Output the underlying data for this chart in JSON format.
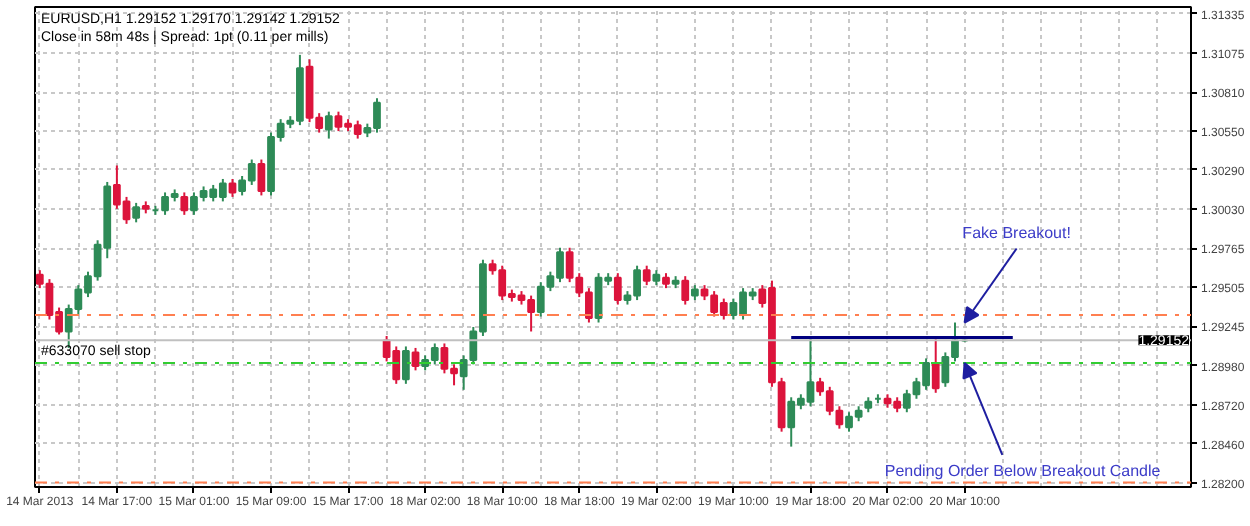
{
  "chart_data": {
    "type": "candlestick",
    "title": "EURUSD,H1  1.29152 1.29170 1.29142 1.29152",
    "subtitle": "Close in 58m 48s | Spread: 1pt (0.11 per mills)",
    "ylim": [
      1.2817,
      1.3138
    ],
    "categories": [
      "14 Mar 2013",
      null,
      null,
      null,
      null,
      null,
      null,
      null,
      "14 Mar 17:00",
      null,
      null,
      null,
      null,
      null,
      null,
      null,
      "15 Mar 01:00",
      null,
      null,
      null,
      null,
      null,
      null,
      null,
      "15 Mar 09:00",
      null,
      null,
      null,
      null,
      null,
      null,
      null,
      "15 Mar 17:00",
      null,
      null,
      null,
      null,
      null,
      null,
      null,
      "18 Mar 02:00",
      null,
      null,
      null,
      null,
      null,
      null,
      null,
      "18 Mar 10:00",
      null,
      null,
      null,
      null,
      null,
      null,
      null,
      "18 Mar 18:00",
      null,
      null,
      null,
      null,
      null,
      null,
      null,
      "19 Mar 02:00",
      null,
      null,
      null,
      null,
      null,
      null,
      null,
      "19 Mar 10:00",
      null,
      null,
      null,
      null,
      null,
      null,
      null,
      "19 Mar 18:00",
      null,
      null,
      null,
      null,
      null,
      null,
      null,
      "20 Mar 02:00",
      null,
      null,
      null,
      null,
      null,
      null,
      null,
      "20 Mar 10:00",
      null,
      null,
      null,
      null,
      null,
      null,
      null,
      null,
      null,
      null,
      null,
      null,
      null,
      null,
      null,
      null,
      null,
      null,
      null,
      null,
      null,
      null,
      null
    ],
    "yticks": [
      {
        "value": 1.31335,
        "label": "1.31335"
      },
      {
        "value": 1.31075,
        "label": "1.31075"
      },
      {
        "value": 1.3081,
        "label": "1.30810"
      },
      {
        "value": 1.3055,
        "label": "1.30550"
      },
      {
        "value": 1.3029,
        "label": "1.30290"
      },
      {
        "value": 1.3003,
        "label": "1.30030"
      },
      {
        "value": 1.29765,
        "label": "1.29765"
      },
      {
        "value": 1.29505,
        "label": "1.29505"
      },
      {
        "value": 1.29245,
        "label": "1.29245"
      },
      {
        "value": 1.2898,
        "label": "1.28980"
      },
      {
        "value": 1.2872,
        "label": "1.28720"
      },
      {
        "value": 1.2846,
        "label": "1.28460"
      },
      {
        "value": 1.282,
        "label": "1.28200"
      }
    ],
    "grid": true,
    "series": [
      {
        "ohlc": [
          [
            1.2959,
            1.2962,
            1.295,
            1.2953
          ],
          [
            1.2953,
            1.2956,
            1.2929,
            1.2932
          ],
          [
            1.2934,
            1.2937,
            1.2919,
            1.2921
          ],
          [
            1.2921,
            1.2939,
            1.291,
            1.2936
          ],
          [
            1.2936,
            1.2952,
            1.2932,
            1.2949
          ],
          [
            1.2947,
            1.2961,
            1.2944,
            1.2958
          ],
          [
            1.2958,
            1.2982,
            1.2955,
            1.2979
          ],
          [
            1.2977,
            1.3021,
            1.297,
            1.3018
          ],
          [
            1.3019,
            1.3032,
            1.3003,
            1.3006
          ],
          [
            1.3008,
            1.3011,
            1.2993,
            1.2996
          ],
          [
            1.2997,
            1.3007,
            1.2994,
            1.3004
          ],
          [
            1.3005,
            1.3008,
            1.3,
            1.3003
          ],
          [
            1.3002,
            1.3005,
            1.2999,
            1.3002
          ],
          [
            1.3002,
            1.3014,
            1.2999,
            1.3011
          ],
          [
            1.3011,
            1.3016,
            1.3008,
            1.3013
          ],
          [
            1.3011,
            1.3014,
            1.2999,
            1.3002
          ],
          [
            1.3002,
            1.3014,
            1.2999,
            1.3011
          ],
          [
            1.3011,
            1.3018,
            1.3008,
            1.3015
          ],
          [
            1.3011,
            1.3019,
            1.3008,
            1.3016
          ],
          [
            1.3011,
            1.3023,
            1.3008,
            1.302
          ],
          [
            1.302,
            1.3023,
            1.3011,
            1.3014
          ],
          [
            1.3015,
            1.3025,
            1.3012,
            1.3022
          ],
          [
            1.3022,
            1.3036,
            1.3019,
            1.3033
          ],
          [
            1.3033,
            1.3036,
            1.3012,
            1.3015
          ],
          [
            1.3015,
            1.3054,
            1.3012,
            1.3051
          ],
          [
            1.3051,
            1.3063,
            1.3048,
            1.306
          ],
          [
            1.306,
            1.3065,
            1.3057,
            1.3062
          ],
          [
            1.3062,
            1.3106,
            1.3059,
            1.3097
          ],
          [
            1.3098,
            1.3103,
            1.3061,
            1.3064
          ],
          [
            1.3064,
            1.3067,
            1.3054,
            1.3057
          ],
          [
            1.3056,
            1.3068,
            1.305,
            1.3065
          ],
          [
            1.3065,
            1.3068,
            1.3055,
            1.3058
          ],
          [
            1.306,
            1.3063,
            1.3055,
            1.3058
          ],
          [
            1.3059,
            1.3062,
            1.305,
            1.3053
          ],
          [
            1.3054,
            1.306,
            1.3051,
            1.3057
          ],
          [
            1.3057,
            1.3077,
            1.3054,
            1.3074
          ],
          [
            1.2915,
            1.2918,
            1.2901,
            1.2904
          ],
          [
            1.2908,
            1.2911,
            1.2886,
            1.2889
          ],
          [
            1.2889,
            1.2911,
            1.2886,
            1.2908
          ],
          [
            1.2907,
            1.291,
            1.2895,
            1.2898
          ],
          [
            1.2898,
            1.2905,
            1.2895,
            1.2902
          ],
          [
            1.2902,
            1.2913,
            1.2899,
            1.291
          ],
          [
            1.291,
            1.2913,
            1.2893,
            1.2896
          ],
          [
            1.2896,
            1.2899,
            1.2885,
            1.2893
          ],
          [
            1.2891,
            1.2905,
            1.2882,
            1.2902
          ],
          [
            1.2902,
            1.2924,
            1.2899,
            1.2921
          ],
          [
            1.2921,
            1.2969,
            1.2918,
            1.2966
          ],
          [
            1.2966,
            1.2969,
            1.2959,
            1.2962
          ],
          [
            1.2962,
            1.2965,
            1.2942,
            1.2945
          ],
          [
            1.2946,
            1.2949,
            1.2941,
            1.2944
          ],
          [
            1.2945,
            1.2948,
            1.2939,
            1.2942
          ],
          [
            1.2942,
            1.2945,
            1.2921,
            1.2934
          ],
          [
            1.2934,
            1.2954,
            1.2931,
            1.2951
          ],
          [
            1.2951,
            1.2961,
            1.2948,
            1.2958
          ],
          [
            1.2957,
            1.2977,
            1.2954,
            1.2974
          ],
          [
            1.2974,
            1.2977,
            1.2954,
            1.2957
          ],
          [
            1.2957,
            1.296,
            1.2944,
            1.2947
          ],
          [
            1.2947,
            1.295,
            1.2927,
            1.293
          ],
          [
            1.293,
            1.296,
            1.2927,
            1.2957
          ],
          [
            1.2955,
            1.296,
            1.2952,
            1.2957
          ],
          [
            1.2957,
            1.296,
            1.2939,
            1.2942
          ],
          [
            1.2942,
            1.2948,
            1.2939,
            1.2945
          ],
          [
            1.2945,
            1.2965,
            1.2942,
            1.2962
          ],
          [
            1.2962,
            1.2965,
            1.2952,
            1.2955
          ],
          [
            1.2955,
            1.2962,
            1.2952,
            1.2959
          ],
          [
            1.2957,
            1.296,
            1.295,
            1.2953
          ],
          [
            1.2953,
            1.2958,
            1.295,
            1.2955
          ],
          [
            1.2955,
            1.2958,
            1.2939,
            1.2942
          ],
          [
            1.2945,
            1.2952,
            1.2942,
            1.2949
          ],
          [
            1.2949,
            1.2952,
            1.2942,
            1.2945
          ],
          [
            1.2945,
            1.2948,
            1.2931,
            1.2934
          ],
          [
            1.294,
            1.2943,
            1.2929,
            1.2932
          ],
          [
            1.2932,
            1.2943,
            1.2929,
            1.294
          ],
          [
            1.2932,
            1.295,
            1.2929,
            1.2947
          ],
          [
            1.2945,
            1.295,
            1.2942,
            1.2947
          ],
          [
            1.2949,
            1.2952,
            1.2937,
            1.294
          ],
          [
            1.295,
            1.2955,
            1.2884,
            1.2887
          ],
          [
            1.2887,
            1.289,
            1.2854,
            1.2857
          ],
          [
            1.2857,
            1.2877,
            1.2844,
            1.2874
          ],
          [
            1.2872,
            1.2879,
            1.2869,
            1.2876
          ],
          [
            1.2874,
            1.2917,
            1.2871,
            1.2887
          ],
          [
            1.2887,
            1.289,
            1.2878,
            1.2881
          ],
          [
            1.2881,
            1.2884,
            1.2865,
            1.2868
          ],
          [
            1.2868,
            1.2871,
            1.2856,
            1.2859
          ],
          [
            1.2857,
            1.2867,
            1.2854,
            1.2864
          ],
          [
            1.2864,
            1.2871,
            1.2861,
            1.2868
          ],
          [
            1.287,
            1.2877,
            1.2867,
            1.2874
          ],
          [
            1.2876,
            1.2879,
            1.2873,
            1.2876
          ],
          [
            1.2876,
            1.2879,
            1.287,
            1.2873
          ],
          [
            1.2874,
            1.2877,
            1.2867,
            1.287
          ],
          [
            1.287,
            1.2882,
            1.2867,
            1.2879
          ],
          [
            1.2879,
            1.289,
            1.2876,
            1.2887
          ],
          [
            1.2885,
            1.2903,
            1.2882,
            1.29
          ],
          [
            1.29,
            1.2917,
            1.288,
            1.2883
          ],
          [
            1.2887,
            1.2907,
            1.2884,
            1.2904
          ],
          [
            1.2904,
            1.2927,
            1.2901,
            1.2915
          ],
          [
            1.2915,
            1.2917,
            1.2914,
            1.2915
          ],
          null,
          null,
          null,
          null,
          null,
          null,
          null,
          null,
          null,
          null,
          null,
          null,
          null,
          null,
          null,
          null,
          null,
          null,
          null,
          null,
          null,
          null,
          null
        ],
        "colors": [
          "#dc143c",
          "#dc143c",
          "#dc143c",
          "#2e8b57",
          "#2e8b57",
          "#2e8b57",
          "#2e8b57",
          "#2e8b57",
          "#dc143c",
          "#dc143c",
          "#2e8b57",
          "#dc143c",
          "#2e8b57",
          "#2e8b57",
          "#2e8b57",
          "#dc143c",
          "#2e8b57",
          "#2e8b57",
          "#2e8b57",
          "#2e8b57",
          "#dc143c",
          "#2e8b57",
          "#2e8b57",
          "#dc143c",
          "#2e8b57",
          "#2e8b57",
          "#2e8b57",
          "#2e8b57",
          "#dc143c",
          "#dc143c",
          "#2e8b57",
          "#dc143c",
          "#dc143c",
          "#dc143c",
          "#2e8b57",
          "#2e8b57",
          "#dc143c",
          "#dc143c",
          "#2e8b57",
          "#dc143c",
          "#2e8b57",
          "#2e8b57",
          "#dc143c",
          "#dc143c",
          "#2e8b57",
          "#2e8b57",
          "#2e8b57",
          "#dc143c",
          "#dc143c",
          "#dc143c",
          "#dc143c",
          "#dc143c",
          "#2e8b57",
          "#2e8b57",
          "#2e8b57",
          "#dc143c",
          "#dc143c",
          "#dc143c",
          "#2e8b57",
          "#2e8b57",
          "#dc143c",
          "#2e8b57",
          "#2e8b57",
          "#dc143c",
          "#2e8b57",
          "#dc143c",
          "#2e8b57",
          "#dc143c",
          "#2e8b57",
          "#dc143c",
          "#dc143c",
          "#dc143c",
          "#2e8b57",
          "#2e8b57",
          "#2e8b57",
          "#dc143c",
          "#dc143c",
          "#dc143c",
          "#2e8b57",
          "#2e8b57",
          "#2e8b57",
          "#dc143c",
          "#dc143c",
          "#dc143c",
          "#2e8b57",
          "#2e8b57",
          "#2e8b57",
          "#2e8b57",
          "#dc143c",
          "#dc143c",
          "#2e8b57",
          "#2e8b57",
          "#2e8b57",
          "#dc143c",
          "#2e8b57",
          "#2e8b57",
          "#2e8b57",
          null,
          null,
          null,
          null,
          null,
          null,
          null,
          null,
          null,
          null,
          null,
          null,
          null,
          null,
          null,
          null,
          null,
          null,
          null,
          null,
          null,
          null,
          null
        ]
      },
      {
        "type": "line",
        "color": "#000080",
        "values": [
          null,
          null,
          null,
          null,
          null,
          null,
          null,
          null,
          null,
          null,
          null,
          null,
          null,
          null,
          null,
          null,
          null,
          null,
          null,
          null,
          null,
          null,
          null,
          null,
          null,
          null,
          null,
          null,
          null,
          null,
          null,
          null,
          null,
          null,
          null,
          null,
          null,
          null,
          null,
          null,
          null,
          null,
          null,
          null,
          null,
          null,
          null,
          null,
          null,
          null,
          null,
          null,
          null,
          null,
          null,
          null,
          null,
          null,
          null,
          null,
          null,
          null,
          null,
          null,
          null,
          null,
          null,
          null,
          null,
          null,
          null,
          null,
          null,
          null,
          null,
          null,
          null,
          null,
          1.2917,
          1.2917,
          1.2917,
          1.2917,
          1.2917,
          1.2917,
          1.2917,
          1.2917,
          1.2917,
          1.2917,
          1.2917,
          1.2917,
          1.2917,
          1.2917,
          1.2917,
          1.2917,
          1.2917,
          1.2917,
          1.2917,
          1.2917,
          1.2917,
          1.2917,
          1.2917,
          1.2917,
          null,
          null,
          null,
          null,
          null,
          null,
          null,
          null,
          null,
          null,
          null,
          null,
          null,
          null,
          null,
          null,
          null,
          null
        ]
      }
    ],
    "ref_lines": [
      {
        "axis": "y",
        "value": 1.2932,
        "color": "#ff7f50",
        "line_style": "dashdot"
      },
      {
        "axis": "y",
        "value": 1.29,
        "label": "#633070 sell stop",
        "color": "#32cd32",
        "line_style": "dashdot"
      },
      {
        "axis": "y",
        "value": 1.29152,
        "label": "1.29152",
        "color": "#c0c0c0",
        "line_style": "solid"
      },
      {
        "axis": "y",
        "value": 1.282,
        "color": "#ff7f50",
        "line_style": "dashdot"
      }
    ],
    "annotations": [
      {
        "text": "Fake Breakout!",
        "x": "20 Mar 10:00",
        "y": 1.2927
      },
      {
        "text": "Pending Order Below Breakout Candle",
        "x": "20 Mar 10:00",
        "y": 1.29
      }
    ]
  }
}
